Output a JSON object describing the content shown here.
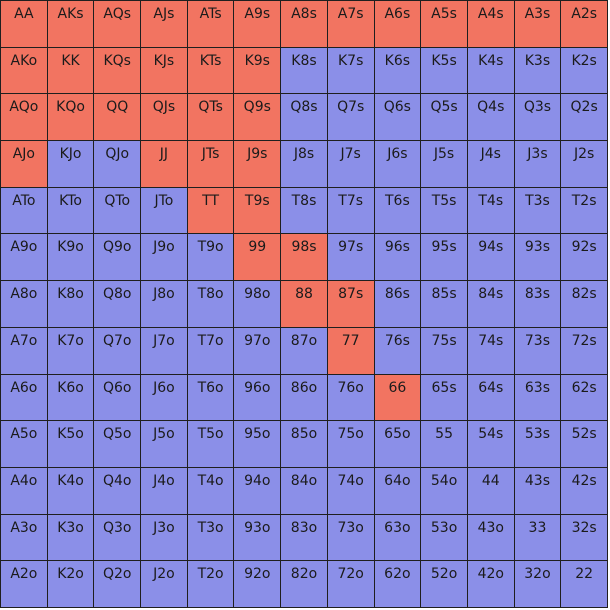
{
  "colors": {
    "selected": "#f27461",
    "unselected": "#8b8fe8",
    "border": "#1f1f1f"
  },
  "range_grid": {
    "rows": [
      [
        {
          "hand": "AA",
          "selected": true
        },
        {
          "hand": "AKs",
          "selected": true
        },
        {
          "hand": "AQs",
          "selected": true
        },
        {
          "hand": "AJs",
          "selected": true
        },
        {
          "hand": "ATs",
          "selected": true
        },
        {
          "hand": "A9s",
          "selected": true
        },
        {
          "hand": "A8s",
          "selected": true
        },
        {
          "hand": "A7s",
          "selected": true
        },
        {
          "hand": "A6s",
          "selected": true
        },
        {
          "hand": "A5s",
          "selected": true
        },
        {
          "hand": "A4s",
          "selected": true
        },
        {
          "hand": "A3s",
          "selected": true
        },
        {
          "hand": "A2s",
          "selected": true
        }
      ],
      [
        {
          "hand": "AKo",
          "selected": true
        },
        {
          "hand": "KK",
          "selected": true
        },
        {
          "hand": "KQs",
          "selected": true
        },
        {
          "hand": "KJs",
          "selected": true
        },
        {
          "hand": "KTs",
          "selected": true
        },
        {
          "hand": "K9s",
          "selected": true
        },
        {
          "hand": "K8s",
          "selected": false
        },
        {
          "hand": "K7s",
          "selected": false
        },
        {
          "hand": "K6s",
          "selected": false
        },
        {
          "hand": "K5s",
          "selected": false
        },
        {
          "hand": "K4s",
          "selected": false
        },
        {
          "hand": "K3s",
          "selected": false
        },
        {
          "hand": "K2s",
          "selected": false
        }
      ],
      [
        {
          "hand": "AQo",
          "selected": true
        },
        {
          "hand": "KQo",
          "selected": true
        },
        {
          "hand": "QQ",
          "selected": true
        },
        {
          "hand": "QJs",
          "selected": true
        },
        {
          "hand": "QTs",
          "selected": true
        },
        {
          "hand": "Q9s",
          "selected": true
        },
        {
          "hand": "Q8s",
          "selected": false
        },
        {
          "hand": "Q7s",
          "selected": false
        },
        {
          "hand": "Q6s",
          "selected": false
        },
        {
          "hand": "Q5s",
          "selected": false
        },
        {
          "hand": "Q4s",
          "selected": false
        },
        {
          "hand": "Q3s",
          "selected": false
        },
        {
          "hand": "Q2s",
          "selected": false
        }
      ],
      [
        {
          "hand": "AJo",
          "selected": true
        },
        {
          "hand": "KJo",
          "selected": false
        },
        {
          "hand": "QJo",
          "selected": false
        },
        {
          "hand": "JJ",
          "selected": true
        },
        {
          "hand": "JTs",
          "selected": true
        },
        {
          "hand": "J9s",
          "selected": true
        },
        {
          "hand": "J8s",
          "selected": false
        },
        {
          "hand": "J7s",
          "selected": false
        },
        {
          "hand": "J6s",
          "selected": false
        },
        {
          "hand": "J5s",
          "selected": false
        },
        {
          "hand": "J4s",
          "selected": false
        },
        {
          "hand": "J3s",
          "selected": false
        },
        {
          "hand": "J2s",
          "selected": false
        }
      ],
      [
        {
          "hand": "ATo",
          "selected": false
        },
        {
          "hand": "KTo",
          "selected": false
        },
        {
          "hand": "QTo",
          "selected": false
        },
        {
          "hand": "JTo",
          "selected": false
        },
        {
          "hand": "TT",
          "selected": true
        },
        {
          "hand": "T9s",
          "selected": true
        },
        {
          "hand": "T8s",
          "selected": false
        },
        {
          "hand": "T7s",
          "selected": false
        },
        {
          "hand": "T6s",
          "selected": false
        },
        {
          "hand": "T5s",
          "selected": false
        },
        {
          "hand": "T4s",
          "selected": false
        },
        {
          "hand": "T3s",
          "selected": false
        },
        {
          "hand": "T2s",
          "selected": false
        }
      ],
      [
        {
          "hand": "A9o",
          "selected": false
        },
        {
          "hand": "K9o",
          "selected": false
        },
        {
          "hand": "Q9o",
          "selected": false
        },
        {
          "hand": "J9o",
          "selected": false
        },
        {
          "hand": "T9o",
          "selected": false
        },
        {
          "hand": "99",
          "selected": true
        },
        {
          "hand": "98s",
          "selected": true
        },
        {
          "hand": "97s",
          "selected": false
        },
        {
          "hand": "96s",
          "selected": false
        },
        {
          "hand": "95s",
          "selected": false
        },
        {
          "hand": "94s",
          "selected": false
        },
        {
          "hand": "93s",
          "selected": false
        },
        {
          "hand": "92s",
          "selected": false
        }
      ],
      [
        {
          "hand": "A8o",
          "selected": false
        },
        {
          "hand": "K8o",
          "selected": false
        },
        {
          "hand": "Q8o",
          "selected": false
        },
        {
          "hand": "J8o",
          "selected": false
        },
        {
          "hand": "T8o",
          "selected": false
        },
        {
          "hand": "98o",
          "selected": false
        },
        {
          "hand": "88",
          "selected": true
        },
        {
          "hand": "87s",
          "selected": true
        },
        {
          "hand": "86s",
          "selected": false
        },
        {
          "hand": "85s",
          "selected": false
        },
        {
          "hand": "84s",
          "selected": false
        },
        {
          "hand": "83s",
          "selected": false
        },
        {
          "hand": "82s",
          "selected": false
        }
      ],
      [
        {
          "hand": "A7o",
          "selected": false
        },
        {
          "hand": "K7o",
          "selected": false
        },
        {
          "hand": "Q7o",
          "selected": false
        },
        {
          "hand": "J7o",
          "selected": false
        },
        {
          "hand": "T7o",
          "selected": false
        },
        {
          "hand": "97o",
          "selected": false
        },
        {
          "hand": "87o",
          "selected": false
        },
        {
          "hand": "77",
          "selected": true
        },
        {
          "hand": "76s",
          "selected": false
        },
        {
          "hand": "75s",
          "selected": false
        },
        {
          "hand": "74s",
          "selected": false
        },
        {
          "hand": "73s",
          "selected": false
        },
        {
          "hand": "72s",
          "selected": false
        }
      ],
      [
        {
          "hand": "A6o",
          "selected": false
        },
        {
          "hand": "K6o",
          "selected": false
        },
        {
          "hand": "Q6o",
          "selected": false
        },
        {
          "hand": "J6o",
          "selected": false
        },
        {
          "hand": "T6o",
          "selected": false
        },
        {
          "hand": "96o",
          "selected": false
        },
        {
          "hand": "86o",
          "selected": false
        },
        {
          "hand": "76o",
          "selected": false
        },
        {
          "hand": "66",
          "selected": true
        },
        {
          "hand": "65s",
          "selected": false
        },
        {
          "hand": "64s",
          "selected": false
        },
        {
          "hand": "63s",
          "selected": false
        },
        {
          "hand": "62s",
          "selected": false
        }
      ],
      [
        {
          "hand": "A5o",
          "selected": false
        },
        {
          "hand": "K5o",
          "selected": false
        },
        {
          "hand": "Q5o",
          "selected": false
        },
        {
          "hand": "J5o",
          "selected": false
        },
        {
          "hand": "T5o",
          "selected": false
        },
        {
          "hand": "95o",
          "selected": false
        },
        {
          "hand": "85o",
          "selected": false
        },
        {
          "hand": "75o",
          "selected": false
        },
        {
          "hand": "65o",
          "selected": false
        },
        {
          "hand": "55",
          "selected": false
        },
        {
          "hand": "54s",
          "selected": false
        },
        {
          "hand": "53s",
          "selected": false
        },
        {
          "hand": "52s",
          "selected": false
        }
      ],
      [
        {
          "hand": "A4o",
          "selected": false
        },
        {
          "hand": "K4o",
          "selected": false
        },
        {
          "hand": "Q4o",
          "selected": false
        },
        {
          "hand": "J4o",
          "selected": false
        },
        {
          "hand": "T4o",
          "selected": false
        },
        {
          "hand": "94o",
          "selected": false
        },
        {
          "hand": "84o",
          "selected": false
        },
        {
          "hand": "74o",
          "selected": false
        },
        {
          "hand": "64o",
          "selected": false
        },
        {
          "hand": "54o",
          "selected": false
        },
        {
          "hand": "44",
          "selected": false
        },
        {
          "hand": "43s",
          "selected": false
        },
        {
          "hand": "42s",
          "selected": false
        }
      ],
      [
        {
          "hand": "A3o",
          "selected": false
        },
        {
          "hand": "K3o",
          "selected": false
        },
        {
          "hand": "Q3o",
          "selected": false
        },
        {
          "hand": "J3o",
          "selected": false
        },
        {
          "hand": "T3o",
          "selected": false
        },
        {
          "hand": "93o",
          "selected": false
        },
        {
          "hand": "83o",
          "selected": false
        },
        {
          "hand": "73o",
          "selected": false
        },
        {
          "hand": "63o",
          "selected": false
        },
        {
          "hand": "53o",
          "selected": false
        },
        {
          "hand": "43o",
          "selected": false
        },
        {
          "hand": "33",
          "selected": false
        },
        {
          "hand": "32s",
          "selected": false
        }
      ],
      [
        {
          "hand": "A2o",
          "selected": false
        },
        {
          "hand": "K2o",
          "selected": false
        },
        {
          "hand": "Q2o",
          "selected": false
        },
        {
          "hand": "J2o",
          "selected": false
        },
        {
          "hand": "T2o",
          "selected": false
        },
        {
          "hand": "92o",
          "selected": false
        },
        {
          "hand": "82o",
          "selected": false
        },
        {
          "hand": "72o",
          "selected": false
        },
        {
          "hand": "62o",
          "selected": false
        },
        {
          "hand": "52o",
          "selected": false
        },
        {
          "hand": "42o",
          "selected": false
        },
        {
          "hand": "32o",
          "selected": false
        },
        {
          "hand": "22",
          "selected": false
        }
      ]
    ]
  }
}
